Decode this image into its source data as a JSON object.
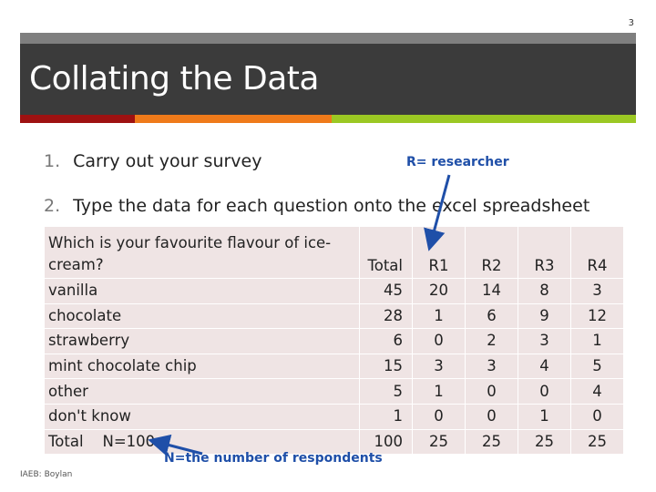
{
  "slide_number": "3",
  "title": "Collating the Data",
  "bullets": [
    {
      "num": "1.",
      "text": "Carry out your survey"
    },
    {
      "num": "2.",
      "text": "Type the data for each question onto the excel spreadsheet"
    }
  ],
  "annotations": {
    "researcher": "R= researcher",
    "respondents": "N=the number of respondents"
  },
  "table": {
    "question": "Which is your favourite flavour of ice-cream?",
    "headers": [
      "Total",
      "R1",
      "R2",
      "R3",
      "R4"
    ],
    "rows": [
      {
        "label": "vanilla",
        "values": [
          "45",
          "20",
          "14",
          "8",
          "3"
        ]
      },
      {
        "label": "chocolate",
        "values": [
          "28",
          "1",
          "6",
          "9",
          "12"
        ]
      },
      {
        "label": "strawberry",
        "values": [
          "6",
          "0",
          "2",
          "3",
          "1"
        ]
      },
      {
        "label": "mint chocolate chip",
        "values": [
          "15",
          "3",
          "3",
          "4",
          "5"
        ]
      },
      {
        "label": "other",
        "values": [
          "5",
          "1",
          "0",
          "0",
          "4"
        ]
      },
      {
        "label": "don't know",
        "values": [
          "1",
          "0",
          "0",
          "1",
          "0"
        ]
      },
      {
        "label": "Total    N=100",
        "values": [
          "100",
          "25",
          "25",
          "25",
          "25"
        ]
      }
    ]
  },
  "footer": "IAEB: Boylan",
  "colors": {
    "accent_red": "#9e1111",
    "accent_orange": "#ef7a1a",
    "accent_green": "#9bc823",
    "annotation_blue": "#1f4fa8"
  }
}
